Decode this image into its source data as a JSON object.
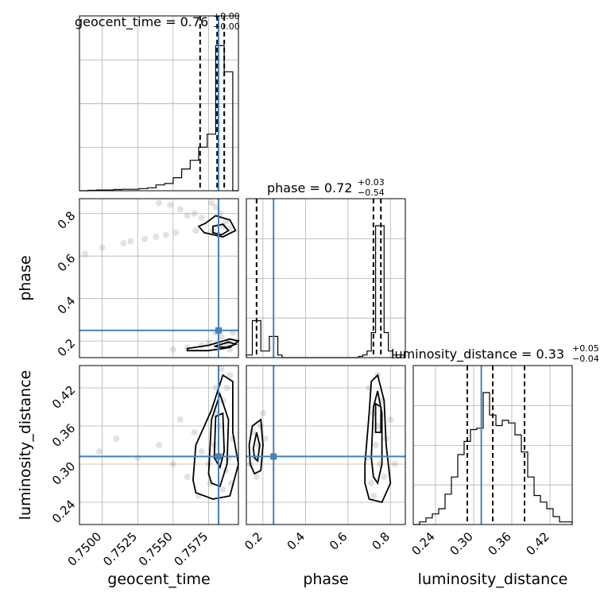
{
  "chart_data": {
    "type": "corner",
    "parameters": [
      "geocent_time",
      "phase",
      "luminosity_distance"
    ],
    "axis_labels": {
      "geocent_time": "geocent_time",
      "phase": "phase",
      "luminosity_distance": "luminosity_distance"
    },
    "ranges": {
      "geocent_time": [
        0.7484,
        0.7596
      ],
      "phase": [
        0.122,
        0.87
      ],
      "luminosity_distance": [
        0.205,
        0.455
      ]
    },
    "ticks": {
      "geocent_time": [
        "0.7500",
        "0.7525",
        "0.7550",
        "0.7575"
      ],
      "phase": [
        "0.2",
        "0.4",
        "0.6",
        "0.8"
      ],
      "luminosity_distance": [
        "0.24",
        "0.30",
        "0.36",
        "0.42"
      ]
    },
    "truths": {
      "geocent_time": 0.7582,
      "phase": 0.25,
      "luminosity_distance": 0.312
    },
    "titles": [
      {
        "param": "geocent_time",
        "text": "geocent_time = 0.76",
        "plus": "+0.00",
        "minus": "−0.00"
      },
      {
        "param": "phase",
        "text": "phase = 0.72",
        "plus": "+0.03",
        "minus": "−0.54"
      },
      {
        "param": "luminosity_distance",
        "text": "luminosity_distance = 0.33",
        "plus": "+0.05",
        "minus": "−0.04"
      }
    ],
    "quantiles": {
      "geocent_time": [
        0.7569,
        0.7581,
        0.7586
      ],
      "phase": [
        0.17,
        0.72,
        0.755
      ],
      "luminosity_distance": [
        0.29,
        0.33,
        0.38
      ]
    },
    "histograms": {
      "geocent_time": {
        "edges": [
          0.7484,
          0.749,
          0.7496,
          0.7502,
          0.7508,
          0.7514,
          0.752,
          0.7526,
          0.7532,
          0.7538,
          0.7544,
          0.755,
          0.7556,
          0.7562,
          0.7568,
          0.7574,
          0.758,
          0.7586,
          0.7592,
          0.7596
        ],
        "counts": [
          0,
          0.003,
          0.005,
          0.005,
          0.008,
          0.01,
          0.01,
          0.015,
          0.02,
          0.04,
          0.05,
          0.09,
          0.15,
          0.21,
          0.3,
          0.39,
          1.0,
          0.82,
          0.0
        ]
      },
      "phase": {
        "edges": [
          0.122,
          0.15,
          0.17,
          0.19,
          0.21,
          0.23,
          0.25,
          0.27,
          0.29,
          0.31,
          0.33,
          0.35,
          0.37,
          0.39,
          0.41,
          0.43,
          0.45,
          0.47,
          0.49,
          0.51,
          0.53,
          0.55,
          0.57,
          0.59,
          0.61,
          0.63,
          0.65,
          0.67,
          0.69,
          0.71,
          0.73,
          0.75,
          0.77,
          0.79,
          0.81,
          0.87
        ],
        "counts": [
          0.02,
          0.28,
          0.28,
          0.05,
          0.05,
          0.16,
          0.16,
          0.02,
          0.0,
          0.0,
          0.0,
          0.0,
          0.0,
          0.0,
          0.0,
          0.0,
          0.0,
          0.0,
          0.0,
          0.0,
          0.0,
          0.0,
          0.0,
          0.0,
          0.0,
          0.0,
          0.01,
          0.02,
          0.05,
          0.19,
          1.0,
          1.0,
          0.19,
          0.05,
          0.02
        ]
      },
      "luminosity_distance": {
        "edges": [
          0.205,
          0.215,
          0.225,
          0.235,
          0.245,
          0.255,
          0.265,
          0.275,
          0.285,
          0.295,
          0.305,
          0.315,
          0.325,
          0.335,
          0.345,
          0.355,
          0.365,
          0.375,
          0.385,
          0.395,
          0.405,
          0.415,
          0.425,
          0.435,
          0.445,
          0.455
        ],
        "counts": [
          0.0,
          0.02,
          0.05,
          0.08,
          0.12,
          0.23,
          0.36,
          0.53,
          0.63,
          0.72,
          0.73,
          1.0,
          0.83,
          0.75,
          0.79,
          0.77,
          0.68,
          0.55,
          0.36,
          0.22,
          0.17,
          0.12,
          0.06,
          0.02,
          0.02
        ]
      }
    },
    "samples_2d": {
      "phase_vs_geocent_time": [
        [
          0.7577,
          0.85
        ],
        [
          0.758,
          0.83
        ],
        [
          0.7583,
          0.8
        ],
        [
          0.7587,
          0.76
        ],
        [
          0.759,
          0.73
        ],
        [
          0.7578,
          0.72
        ],
        [
          0.7582,
          0.7
        ],
        [
          0.7585,
          0.74
        ],
        [
          0.7565,
          0.8
        ],
        [
          0.7555,
          0.82
        ],
        [
          0.7548,
          0.84
        ],
        [
          0.754,
          0.85
        ],
        [
          0.757,
          0.78
        ],
        [
          0.756,
          0.79
        ],
        [
          0.7545,
          0.7
        ],
        [
          0.753,
          0.68
        ],
        [
          0.7515,
          0.66
        ],
        [
          0.75,
          0.64
        ],
        [
          0.7488,
          0.61
        ],
        [
          0.752,
          0.67
        ],
        [
          0.7538,
          0.69
        ],
        [
          0.7552,
          0.71
        ],
        [
          0.7566,
          0.72
        ],
        [
          0.758,
          0.24
        ],
        [
          0.7584,
          0.22
        ],
        [
          0.7589,
          0.2
        ],
        [
          0.7592,
          0.24
        ],
        [
          0.7575,
          0.19
        ],
        [
          0.757,
          0.18
        ],
        [
          0.756,
          0.17
        ],
        [
          0.755,
          0.16
        ],
        [
          0.7585,
          0.17
        ],
        [
          0.759,
          0.16
        ],
        [
          0.7588,
          0.18
        ]
      ],
      "luminosity_distance_vs_geocent_time": [
        [
          0.758,
          0.38
        ],
        [
          0.7583,
          0.36
        ],
        [
          0.7579,
          0.33
        ],
        [
          0.7585,
          0.4
        ],
        [
          0.7588,
          0.42
        ],
        [
          0.759,
          0.44
        ],
        [
          0.7575,
          0.3
        ],
        [
          0.757,
          0.32
        ],
        [
          0.7565,
          0.35
        ],
        [
          0.756,
          0.28
        ],
        [
          0.7585,
          0.26
        ],
        [
          0.7589,
          0.31
        ],
        [
          0.7592,
          0.34
        ],
        [
          0.7587,
          0.29
        ],
        [
          0.755,
          0.3
        ],
        [
          0.754,
          0.33
        ],
        [
          0.7525,
          0.31
        ],
        [
          0.751,
          0.34
        ],
        [
          0.7498,
          0.32
        ],
        [
          0.758,
          0.42
        ],
        [
          0.7576,
          0.27
        ],
        [
          0.7568,
          0.25
        ],
        [
          0.7555,
          0.37
        ],
        [
          0.7584,
          0.45
        ],
        [
          0.7591,
          0.27
        ]
      ],
      "luminosity_distance_vs_phase": [
        [
          0.18,
          0.33
        ],
        [
          0.16,
          0.31
        ],
        [
          0.19,
          0.36
        ],
        [
          0.14,
          0.3
        ],
        [
          0.21,
          0.34
        ],
        [
          0.17,
          0.28
        ],
        [
          0.2,
          0.38
        ],
        [
          0.15,
          0.35
        ],
        [
          0.72,
          0.38
        ],
        [
          0.74,
          0.36
        ],
        [
          0.76,
          0.4
        ],
        [
          0.73,
          0.33
        ],
        [
          0.75,
          0.3
        ],
        [
          0.7,
          0.42
        ],
        [
          0.78,
          0.34
        ],
        [
          0.71,
          0.27
        ],
        [
          0.77,
          0.28
        ],
        [
          0.74,
          0.44
        ],
        [
          0.69,
          0.31
        ],
        [
          0.8,
          0.37
        ],
        [
          0.72,
          0.25
        ],
        [
          0.82,
          0.3
        ]
      ]
    },
    "contours_2d": {
      "phase_vs_geocent_time": [
        [
          [
            0.7573,
            0.755
          ],
          [
            0.758,
            0.79
          ],
          [
            0.759,
            0.77
          ],
          [
            0.7594,
            0.72
          ],
          [
            0.7585,
            0.69
          ],
          [
            0.7572,
            0.71
          ],
          [
            0.7568,
            0.74
          ]
        ],
        [
          [
            0.7578,
            0.74
          ],
          [
            0.7585,
            0.75
          ],
          [
            0.7589,
            0.72
          ],
          [
            0.7584,
            0.7
          ],
          [
            0.7578,
            0.71
          ]
        ],
        [
          [
            0.756,
            0.165
          ],
          [
            0.7575,
            0.18
          ],
          [
            0.759,
            0.21
          ],
          [
            0.7596,
            0.2
          ],
          [
            0.759,
            0.17
          ],
          [
            0.7575,
            0.155
          ],
          [
            0.756,
            0.155
          ]
        ],
        [
          [
            0.7579,
            0.175
          ],
          [
            0.7589,
            0.195
          ],
          [
            0.7594,
            0.185
          ],
          [
            0.7587,
            0.17
          ]
        ]
      ],
      "luminosity_distance_vs_geocent_time": [
        [
          [
            0.7564,
            0.275
          ],
          [
            0.7566,
            0.33
          ],
          [
            0.7577,
            0.385
          ],
          [
            0.7585,
            0.44
          ],
          [
            0.7592,
            0.43
          ],
          [
            0.7592,
            0.35
          ],
          [
            0.7596,
            0.3
          ],
          [
            0.759,
            0.25
          ],
          [
            0.7578,
            0.245
          ],
          [
            0.7566,
            0.255
          ]
        ],
        [
          [
            0.7575,
            0.285
          ],
          [
            0.7577,
            0.37
          ],
          [
            0.7583,
            0.41
          ],
          [
            0.7589,
            0.37
          ],
          [
            0.7588,
            0.3
          ],
          [
            0.7583,
            0.265
          ],
          [
            0.7577,
            0.27
          ]
        ],
        [
          [
            0.7579,
            0.31
          ],
          [
            0.758,
            0.375
          ],
          [
            0.7585,
            0.38
          ],
          [
            0.7586,
            0.32
          ],
          [
            0.7583,
            0.295
          ]
        ]
      ],
      "luminosity_distance_vs_phase": [
        [
          [
            0.135,
            0.33
          ],
          [
            0.15,
            0.36
          ],
          [
            0.19,
            0.37
          ],
          [
            0.2,
            0.33
          ],
          [
            0.19,
            0.29
          ],
          [
            0.16,
            0.285
          ],
          [
            0.14,
            0.3
          ]
        ],
        [
          [
            0.155,
            0.325
          ],
          [
            0.17,
            0.35
          ],
          [
            0.185,
            0.33
          ],
          [
            0.175,
            0.305
          ],
          [
            0.16,
            0.31
          ]
        ],
        [
          [
            0.68,
            0.3
          ],
          [
            0.7,
            0.38
          ],
          [
            0.71,
            0.43
          ],
          [
            0.74,
            0.44
          ],
          [
            0.77,
            0.4
          ],
          [
            0.78,
            0.33
          ],
          [
            0.8,
            0.27
          ],
          [
            0.76,
            0.24
          ],
          [
            0.7,
            0.245
          ],
          [
            0.68,
            0.27
          ]
        ],
        [
          [
            0.71,
            0.31
          ],
          [
            0.72,
            0.39
          ],
          [
            0.74,
            0.415
          ],
          [
            0.76,
            0.38
          ],
          [
            0.76,
            0.3
          ],
          [
            0.74,
            0.27
          ],
          [
            0.72,
            0.28
          ]
        ],
        [
          [
            0.73,
            0.35
          ],
          [
            0.73,
            0.395
          ],
          [
            0.755,
            0.39
          ],
          [
            0.755,
            0.35
          ]
        ]
      ]
    }
  }
}
